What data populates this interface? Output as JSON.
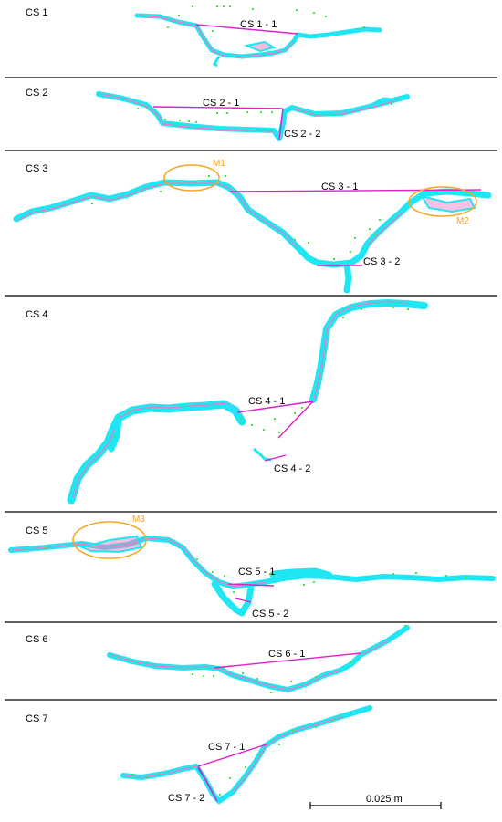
{
  "colors": {
    "cyan": "#1ee6f2",
    "pink": "#f07bbf",
    "magenta": "#e020c8",
    "green": "#3ee63e",
    "orange": "#f5a623",
    "divider": "#000000"
  },
  "panels": [
    {
      "label": "CS 1",
      "sections": [
        {
          "label": "CS 1 - 1"
        }
      ]
    },
    {
      "label": "CS 2",
      "sections": [
        {
          "label": "CS 2 - 1"
        },
        {
          "label": "CS 2 - 2"
        }
      ]
    },
    {
      "label": "CS 3",
      "sections": [
        {
          "label": "CS 3 - 1"
        },
        {
          "label": "CS 3 - 2"
        }
      ],
      "markers": [
        {
          "label": "M1"
        },
        {
          "label": "M2"
        }
      ]
    },
    {
      "label": "CS 4",
      "sections": [
        {
          "label": "CS 4 - 1"
        },
        {
          "label": "CS 4 - 2"
        }
      ]
    },
    {
      "label": "CS 5",
      "sections": [
        {
          "label": "CS 5 - 1"
        },
        {
          "label": "CS 5 - 2"
        }
      ],
      "markers": [
        {
          "label": "M3"
        }
      ]
    },
    {
      "label": "CS 6",
      "sections": [
        {
          "label": "CS 6 - 1"
        }
      ]
    },
    {
      "label": "CS 7",
      "sections": [
        {
          "label": "CS 7 - 1"
        },
        {
          "label": "CS 7 - 2"
        }
      ]
    }
  ],
  "scale_bar": {
    "label": "0.025 m"
  }
}
